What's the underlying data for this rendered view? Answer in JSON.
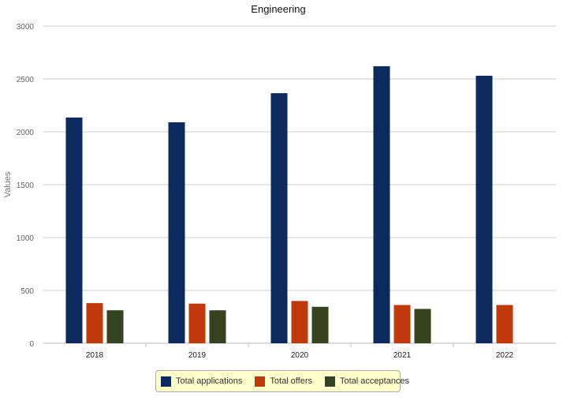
{
  "chart_data": {
    "type": "bar",
    "title": "Engineering",
    "ylabel": "Values",
    "xlabel": "",
    "ylim": [
      0,
      3000
    ],
    "yticks": [
      0,
      500,
      1000,
      1500,
      2000,
      2500,
      3000
    ],
    "categories": [
      "2018",
      "2019",
      "2020",
      "2021",
      "2022"
    ],
    "series": [
      {
        "name": "Total applications",
        "color": "#0d2a5e",
        "values": [
          2135,
          2090,
          2365,
          2620,
          2530
        ]
      },
      {
        "name": "Total offers",
        "color": "#c0390b",
        "values": [
          380,
          375,
          400,
          362,
          362
        ]
      },
      {
        "name": "Total acceptances",
        "color": "#344220",
        "values": [
          312,
          312,
          345,
          325,
          null
        ]
      }
    ],
    "grid": true,
    "legend_position": "bottom-center"
  }
}
